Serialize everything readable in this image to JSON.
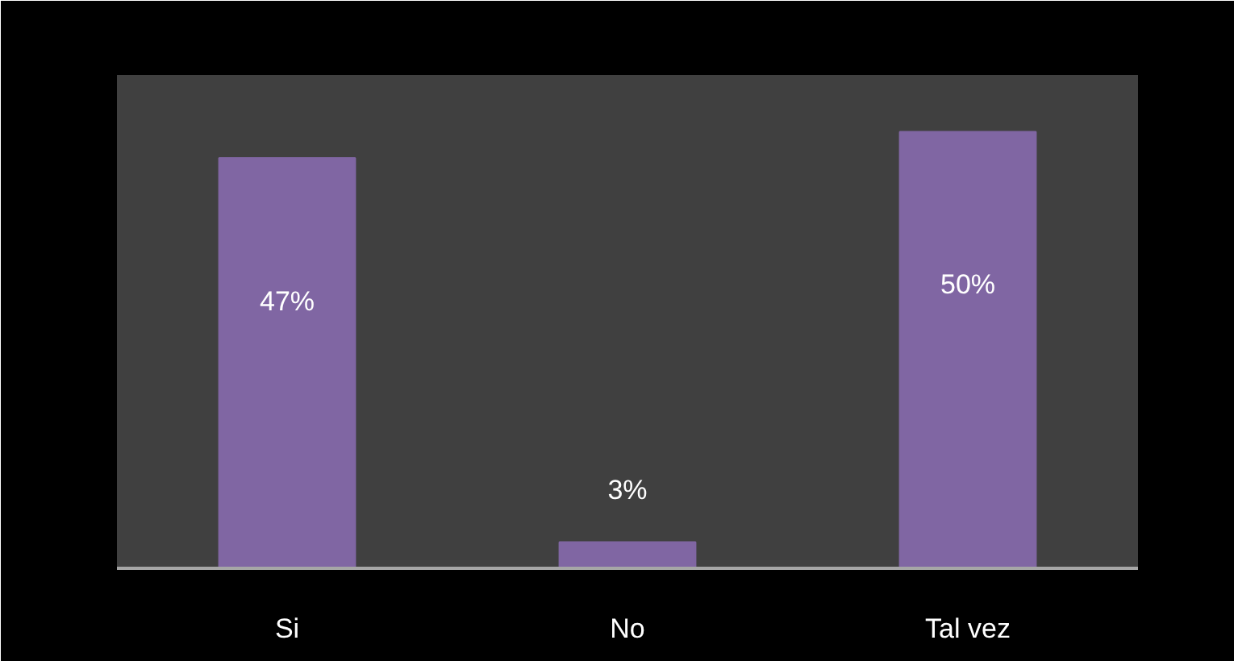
{
  "chart_data": {
    "type": "bar",
    "categories": [
      "Si",
      "No",
      "Tal vez"
    ],
    "values": [
      47,
      3,
      50
    ],
    "color": "#8066a3",
    "value_labels": [
      "47%",
      "3%",
      "50%"
    ],
    "tick_labels": "x"
  }
}
